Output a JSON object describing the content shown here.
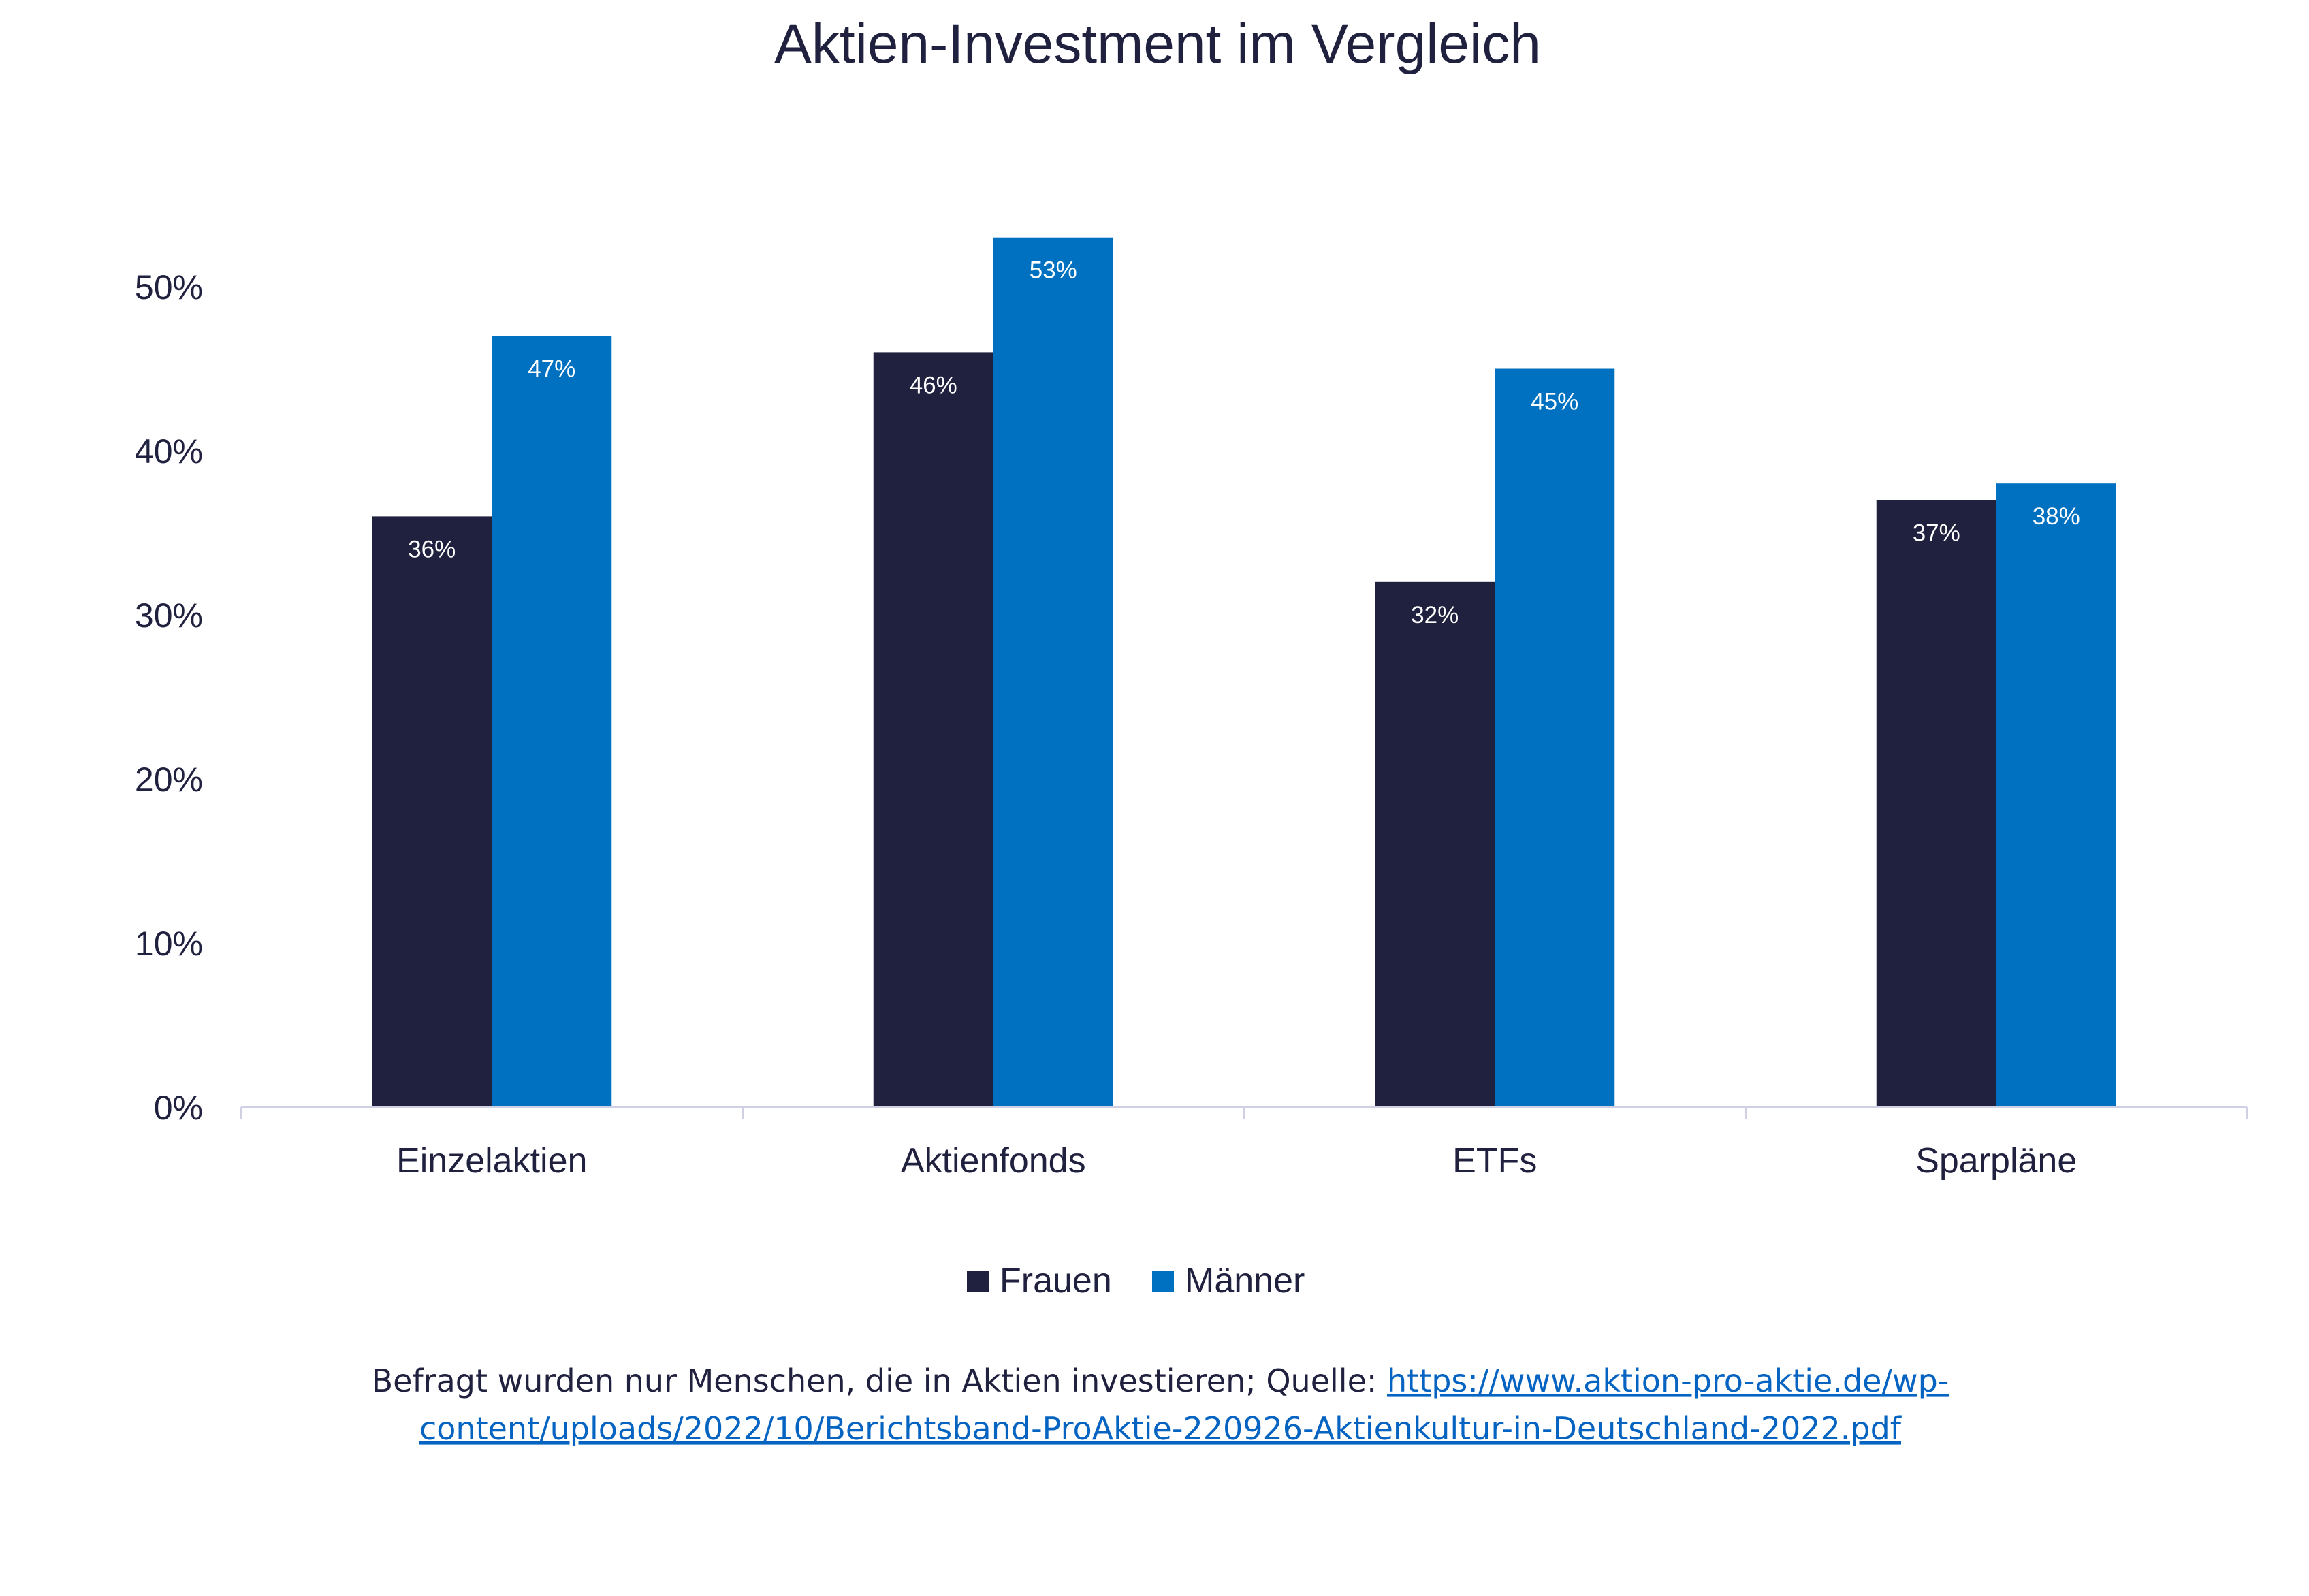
{
  "chart_data": {
    "type": "bar",
    "title": "Aktien-Investment im Vergleich",
    "categories": [
      "Einzelaktien",
      "Aktienfonds",
      "ETFs",
      "Sparpläne"
    ],
    "series": [
      {
        "name": "Frauen",
        "values": [
          36,
          46,
          32,
          37
        ],
        "labels": [
          "36%",
          "46%",
          "32%",
          "37%"
        ],
        "color": "#20203F"
      },
      {
        "name": "Männer",
        "values": [
          47,
          53,
          45,
          38
        ],
        "labels": [
          "47%",
          "53%",
          "45%",
          "38%"
        ],
        "color": "#0070C0"
      }
    ],
    "ylim": [
      0,
      55
    ],
    "yticks": [
      0,
      10,
      20,
      30,
      40,
      50
    ],
    "ytick_labels": [
      "0%",
      "10%",
      "20%",
      "30%",
      "40%",
      "50%"
    ],
    "xlabel": "",
    "ylabel": "",
    "grid": false,
    "legend": "bottom",
    "axis_color": "#D0D0E4"
  },
  "footnote": {
    "text": "Befragt wurden nur Menschen, die in Aktien investieren; Quelle: ",
    "link_line1": "https://www.aktion-pro-aktie.de/wp-",
    "link_line2": "content/uploads/2022/10/Berichtsband-ProAktie-220926-Aktienkultur-in-Deutschland-2022.pdf"
  }
}
